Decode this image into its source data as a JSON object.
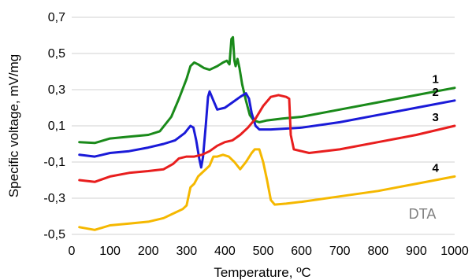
{
  "chart_data": {
    "type": "line",
    "xlabel": "Temperature, ºC",
    "ylabel": "Specific voltage, mV/mg",
    "xlim": [
      0,
      1000
    ],
    "ylim": [
      -0.5,
      0.7
    ],
    "x_ticks": [
      "0",
      "100",
      "200",
      "300",
      "400",
      "500",
      "600",
      "700",
      "800",
      "900",
      "1000"
    ],
    "y_ticks": [
      "-0,5",
      "-0,3",
      "-0,1",
      "0,1",
      "0,3",
      "0,5",
      "0,7"
    ],
    "grid": "horizontal",
    "annotation": "DTA",
    "series": [
      {
        "name": "1",
        "color": "#1a8a1a",
        "points": [
          [
            20,
            0.01
          ],
          [
            60,
            0.005
          ],
          [
            100,
            0.03
          ],
          [
            150,
            0.04
          ],
          [
            200,
            0.05
          ],
          [
            230,
            0.07
          ],
          [
            260,
            0.15
          ],
          [
            280,
            0.25
          ],
          [
            300,
            0.36
          ],
          [
            310,
            0.43
          ],
          [
            320,
            0.45
          ],
          [
            330,
            0.44
          ],
          [
            345,
            0.42
          ],
          [
            360,
            0.41
          ],
          [
            380,
            0.43
          ],
          [
            395,
            0.45
          ],
          [
            405,
            0.46
          ],
          [
            412,
            0.44
          ],
          [
            417,
            0.58
          ],
          [
            421,
            0.59
          ],
          [
            425,
            0.46
          ],
          [
            428,
            0.43
          ],
          [
            433,
            0.47
          ],
          [
            438,
            0.42
          ],
          [
            445,
            0.33
          ],
          [
            455,
            0.24
          ],
          [
            465,
            0.16
          ],
          [
            475,
            0.13
          ],
          [
            490,
            0.12
          ],
          [
            510,
            0.13
          ],
          [
            550,
            0.14
          ],
          [
            600,
            0.15
          ],
          [
            700,
            0.19
          ],
          [
            800,
            0.23
          ],
          [
            900,
            0.27
          ],
          [
            1000,
            0.31
          ]
        ]
      },
      {
        "name": "2",
        "color": "#1a1ad8",
        "points": [
          [
            20,
            -0.06
          ],
          [
            60,
            -0.07
          ],
          [
            100,
            -0.05
          ],
          [
            150,
            -0.04
          ],
          [
            200,
            -0.02
          ],
          [
            240,
            0.0
          ],
          [
            270,
            0.02
          ],
          [
            295,
            0.06
          ],
          [
            310,
            0.1
          ],
          [
            318,
            0.09
          ],
          [
            325,
            0.02
          ],
          [
            333,
            -0.08
          ],
          [
            338,
            -0.13
          ],
          [
            343,
            -0.07
          ],
          [
            350,
            0.1
          ],
          [
            356,
            0.26
          ],
          [
            360,
            0.29
          ],
          [
            370,
            0.24
          ],
          [
            380,
            0.19
          ],
          [
            400,
            0.2
          ],
          [
            420,
            0.23
          ],
          [
            440,
            0.26
          ],
          [
            455,
            0.28
          ],
          [
            463,
            0.25
          ],
          [
            470,
            0.17
          ],
          [
            480,
            0.1
          ],
          [
            490,
            0.08
          ],
          [
            520,
            0.08
          ],
          [
            600,
            0.09
          ],
          [
            700,
            0.12
          ],
          [
            800,
            0.16
          ],
          [
            900,
            0.2
          ],
          [
            1000,
            0.24
          ]
        ]
      },
      {
        "name": "3",
        "color": "#e81e1e",
        "points": [
          [
            20,
            -0.2
          ],
          [
            60,
            -0.21
          ],
          [
            100,
            -0.18
          ],
          [
            150,
            -0.16
          ],
          [
            200,
            -0.15
          ],
          [
            240,
            -0.14
          ],
          [
            265,
            -0.11
          ],
          [
            280,
            -0.08
          ],
          [
            300,
            -0.07
          ],
          [
            320,
            -0.07
          ],
          [
            340,
            -0.06
          ],
          [
            360,
            -0.04
          ],
          [
            380,
            -0.01
          ],
          [
            400,
            0.01
          ],
          [
            420,
            0.02
          ],
          [
            440,
            0.05
          ],
          [
            460,
            0.09
          ],
          [
            480,
            0.14
          ],
          [
            500,
            0.21
          ],
          [
            520,
            0.26
          ],
          [
            540,
            0.27
          ],
          [
            560,
            0.26
          ],
          [
            568,
            0.25
          ],
          [
            572,
            0.05
          ],
          [
            580,
            -0.03
          ],
          [
            600,
            -0.04
          ],
          [
            620,
            -0.05
          ],
          [
            700,
            -0.03
          ],
          [
            800,
            0.01
          ],
          [
            900,
            0.05
          ],
          [
            1000,
            0.1
          ]
        ]
      },
      {
        "name": "4",
        "color": "#f5b800",
        "points": [
          [
            20,
            -0.46
          ],
          [
            60,
            -0.475
          ],
          [
            100,
            -0.45
          ],
          [
            150,
            -0.44
          ],
          [
            200,
            -0.43
          ],
          [
            240,
            -0.41
          ],
          [
            270,
            -0.38
          ],
          [
            290,
            -0.36
          ],
          [
            300,
            -0.34
          ],
          [
            310,
            -0.24
          ],
          [
            320,
            -0.22
          ],
          [
            330,
            -0.18
          ],
          [
            345,
            -0.15
          ],
          [
            360,
            -0.12
          ],
          [
            370,
            -0.07
          ],
          [
            380,
            -0.07
          ],
          [
            395,
            -0.06
          ],
          [
            410,
            -0.07
          ],
          [
            425,
            -0.1
          ],
          [
            440,
            -0.14
          ],
          [
            455,
            -0.1
          ],
          [
            470,
            -0.05
          ],
          [
            478,
            -0.03
          ],
          [
            490,
            -0.03
          ],
          [
            500,
            -0.1
          ],
          [
            510,
            -0.2
          ],
          [
            520,
            -0.31
          ],
          [
            530,
            -0.335
          ],
          [
            560,
            -0.33
          ],
          [
            600,
            -0.32
          ],
          [
            700,
            -0.29
          ],
          [
            800,
            -0.26
          ],
          [
            900,
            -0.22
          ],
          [
            1000,
            -0.18
          ]
        ]
      }
    ]
  }
}
